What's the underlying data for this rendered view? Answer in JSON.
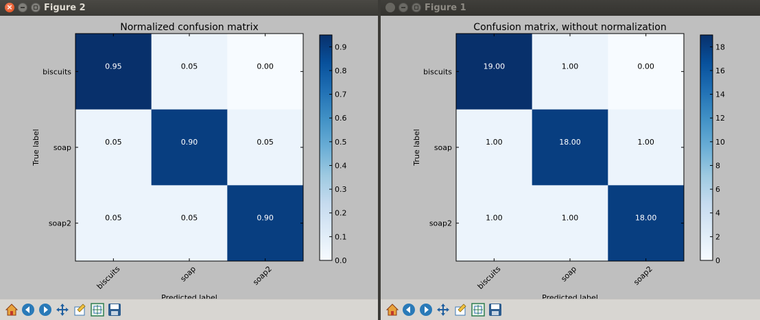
{
  "windows": [
    {
      "id": "w2",
      "title": "Figure 2",
      "active": true,
      "chart_data": {
        "type": "heatmap",
        "title": "Normalized confusion matrix",
        "xlabel": "Predicted label",
        "ylabel": "True label",
        "x_categories": [
          "biscuits",
          "soap",
          "soap2"
        ],
        "y_categories": [
          "biscuits",
          "soap",
          "soap2"
        ],
        "values": [
          [
            0.95,
            0.05,
            0.0
          ],
          [
            0.05,
            0.9,
            0.05
          ],
          [
            0.05,
            0.05,
            0.9
          ]
        ],
        "cell_labels": [
          [
            "0.95",
            "0.05",
            "0.00"
          ],
          [
            "0.05",
            "0.90",
            "0.05"
          ],
          [
            "0.05",
            "0.05",
            "0.90"
          ]
        ],
        "vmin": 0.0,
        "vmax": 0.95,
        "colormap": "Blues",
        "colorbar_ticks": [
          "0.0",
          "0.1",
          "0.2",
          "0.3",
          "0.4",
          "0.5",
          "0.6",
          "0.7",
          "0.8",
          "0.9"
        ],
        "colorbar_tick_values": [
          0.0,
          0.1,
          0.2,
          0.3,
          0.4,
          0.5,
          0.6,
          0.7,
          0.8,
          0.9
        ]
      }
    },
    {
      "id": "w1",
      "title": "Figure 1",
      "active": false,
      "chart_data": {
        "type": "heatmap",
        "title": "Confusion matrix, without normalization",
        "xlabel": "Predicted label",
        "ylabel": "True label",
        "x_categories": [
          "biscuits",
          "soap",
          "soap2"
        ],
        "y_categories": [
          "biscuits",
          "soap",
          "soap2"
        ],
        "values": [
          [
            19,
            1,
            0
          ],
          [
            1,
            18,
            1
          ],
          [
            1,
            1,
            18
          ]
        ],
        "cell_labels": [
          [
            "19.00",
            "1.00",
            "0.00"
          ],
          [
            "1.00",
            "18.00",
            "1.00"
          ],
          [
            "1.00",
            "1.00",
            "18.00"
          ]
        ],
        "vmin": 0,
        "vmax": 19,
        "colormap": "Blues",
        "colorbar_ticks": [
          "0",
          "2",
          "4",
          "6",
          "8",
          "10",
          "12",
          "14",
          "16",
          "18"
        ],
        "colorbar_tick_values": [
          0,
          2,
          4,
          6,
          8,
          10,
          12,
          14,
          16,
          18
        ]
      }
    }
  ],
  "toolbar": {
    "icons": [
      "home-icon",
      "back-icon",
      "forward-icon",
      "pan-icon",
      "zoom-icon",
      "subplots-icon",
      "save-icon"
    ]
  },
  "colors": {
    "blues_dark": "#08306b",
    "blues_light": "#f7fbff",
    "figure_bg": "#bfbfbf",
    "titlebar": "#3c3b37",
    "close_button": "#e95420"
  }
}
